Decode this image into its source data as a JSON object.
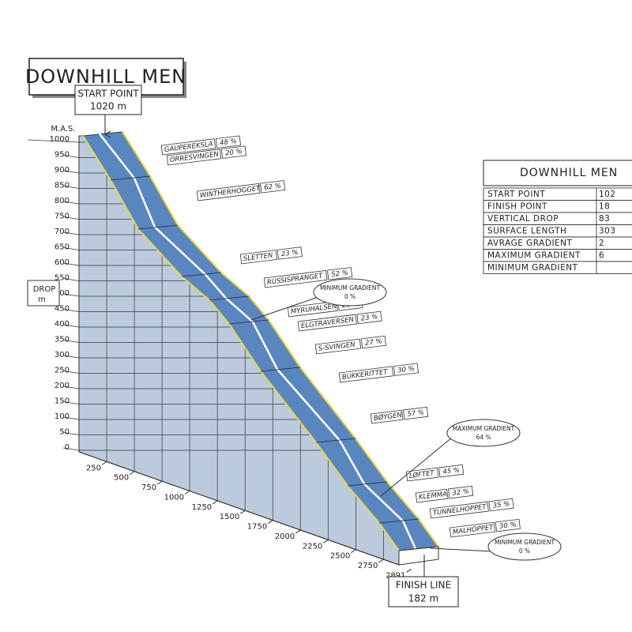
{
  "title": "DOWNHILL MEN",
  "start": {
    "label": "START POINT",
    "value": "1020 m"
  },
  "finish": {
    "label": "FINISH LINE",
    "value": "182 m"
  },
  "y_axis": {
    "label": "M.A.S.",
    "drop_label": [
      "DROP",
      "m"
    ],
    "ticks": [
      "1000",
      "950",
      "900",
      "850",
      "800",
      "750",
      "700",
      "650",
      "600",
      "550",
      "500",
      "450",
      "400",
      "350",
      "300",
      "250",
      "200",
      "150",
      "100",
      "50",
      "0"
    ]
  },
  "x_axis": {
    "ticks": [
      "250",
      "500",
      "750",
      "1000",
      "1250",
      "1500",
      "1750",
      "2000",
      "2250",
      "2500",
      "2750",
      "2891"
    ]
  },
  "sections": [
    {
      "name": "GAUPEREKSLA",
      "gradient": "48 %"
    },
    {
      "name": "ORRESVINGEN",
      "gradient": "20 %"
    },
    {
      "name": "WINTHERHOGGET",
      "gradient": "62 %"
    },
    {
      "name": "SLETTEN",
      "gradient": "23 %"
    },
    {
      "name": "RUSSISPRANGET",
      "gradient": "52 %"
    },
    {
      "name": "MYRUHALSEN",
      "gradient": "25 %"
    },
    {
      "name": "ELGTRAVERSEN",
      "gradient": "23 %"
    },
    {
      "name": "S-SVINGEN",
      "gradient": "27 %"
    },
    {
      "name": "BUKKERITTET",
      "gradient": "30 %"
    },
    {
      "name": "BØYGEN",
      "gradient": "57 %"
    },
    {
      "name": "LØFTET",
      "gradient": "45 %"
    },
    {
      "name": "KLEMMA",
      "gradient": "32 %"
    },
    {
      "name": "TUNNELHOPPET",
      "gradient": "35 %"
    },
    {
      "name": "MALHOPPET",
      "gradient": "30 %"
    }
  ],
  "notes": [
    {
      "title": "MINIMUM GRADIENT",
      "value": "0 %"
    },
    {
      "title": "MAXIMUM GRADIENT",
      "value": "64 %"
    },
    {
      "title": "MINIMUM GRADIENT",
      "value": "0 %"
    }
  ],
  "table": {
    "title": "DOWNHILL MEN",
    "rows": [
      [
        "START POINT",
        "102"
      ],
      [
        "FINISH POINT",
        "18"
      ],
      [
        "VERTICAL DROP",
        "83"
      ],
      [
        "SURFACE LENGTH",
        "303"
      ],
      [
        "AVRAGE GRADIENT",
        "2"
      ],
      [
        "MAXIMUM GRADIENT",
        "6"
      ],
      [
        "MINIMUM GRADIENT"
      ]
    ]
  }
}
